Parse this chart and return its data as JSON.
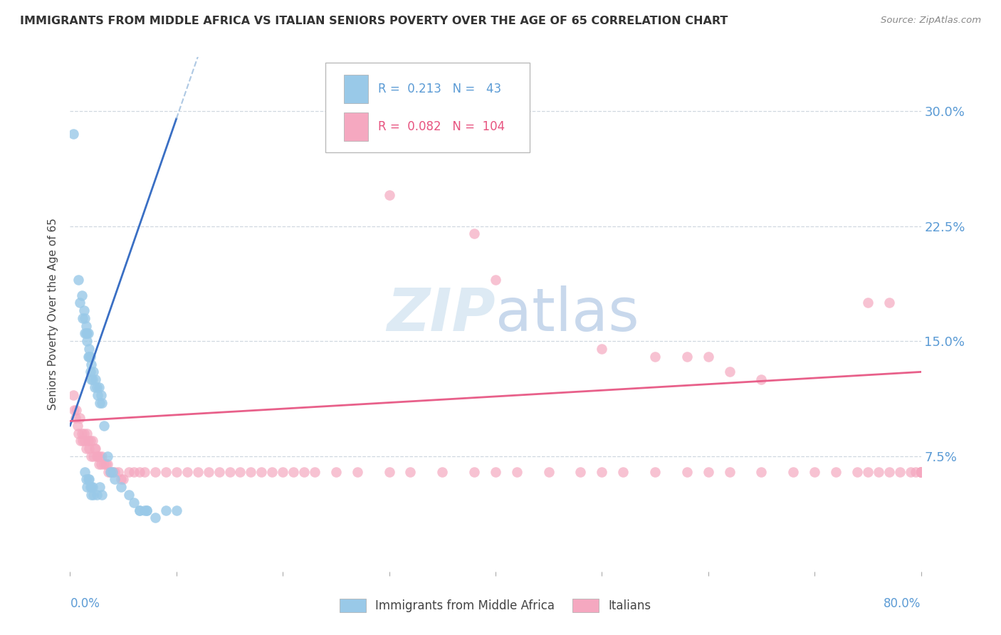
{
  "title": "IMMIGRANTS FROM MIDDLE AFRICA VS ITALIAN SENIORS POVERTY OVER THE AGE OF 65 CORRELATION CHART",
  "source": "Source: ZipAtlas.com",
  "ylabel": "Seniors Poverty Over the Age of 65",
  "ytick_labels": [
    "7.5%",
    "15.0%",
    "22.5%",
    "30.0%"
  ],
  "ytick_values": [
    0.075,
    0.15,
    0.225,
    0.3
  ],
  "xlim": [
    0.0,
    0.8
  ],
  "ylim": [
    0.0,
    0.335
  ],
  "legend_blue_R": "0.213",
  "legend_blue_N": "43",
  "legend_pink_R": "0.082",
  "legend_pink_N": "104",
  "legend_label_blue": "Immigrants from Middle Africa",
  "legend_label_pink": "Italians",
  "blue_color": "#99C9E8",
  "pink_color": "#F5A8C0",
  "blue_line_color": "#3A6FC4",
  "blue_dash_color": "#A0BFDF",
  "pink_line_color": "#E8608A",
  "blue_scatter_x": [
    0.003,
    0.008,
    0.009,
    0.011,
    0.012,
    0.013,
    0.014,
    0.014,
    0.015,
    0.015,
    0.016,
    0.016,
    0.017,
    0.017,
    0.018,
    0.018,
    0.019,
    0.019,
    0.02,
    0.02,
    0.021,
    0.022,
    0.023,
    0.024,
    0.025,
    0.026,
    0.027,
    0.028,
    0.029,
    0.03,
    0.032,
    0.035,
    0.038,
    0.04,
    0.042,
    0.048,
    0.055,
    0.06,
    0.065,
    0.072,
    0.08,
    0.09,
    0.1
  ],
  "blue_scatter_y": [
    0.285,
    0.19,
    0.175,
    0.18,
    0.165,
    0.17,
    0.155,
    0.165,
    0.155,
    0.16,
    0.15,
    0.155,
    0.14,
    0.155,
    0.14,
    0.145,
    0.13,
    0.14,
    0.125,
    0.135,
    0.125,
    0.13,
    0.12,
    0.125,
    0.12,
    0.115,
    0.12,
    0.11,
    0.115,
    0.11,
    0.095,
    0.075,
    0.065,
    0.065,
    0.06,
    0.055,
    0.05,
    0.045,
    0.04,
    0.04,
    0.035,
    0.04,
    0.04
  ],
  "blue_low_x": [
    0.014,
    0.015,
    0.016,
    0.017,
    0.018,
    0.019,
    0.02,
    0.02,
    0.021,
    0.022,
    0.025,
    0.028,
    0.03,
    0.065,
    0.07,
    0.072
  ],
  "blue_low_y": [
    0.065,
    0.06,
    0.055,
    0.06,
    0.06,
    0.055,
    0.055,
    0.05,
    0.055,
    0.05,
    0.05,
    0.055,
    0.05,
    0.04,
    0.04,
    0.04
  ],
  "pink_scatter_x": [
    0.003,
    0.004,
    0.005,
    0.006,
    0.007,
    0.008,
    0.009,
    0.01,
    0.011,
    0.012,
    0.013,
    0.014,
    0.015,
    0.016,
    0.017,
    0.018,
    0.019,
    0.02,
    0.021,
    0.022,
    0.023,
    0.024,
    0.025,
    0.026,
    0.027,
    0.028,
    0.029,
    0.03,
    0.032,
    0.034,
    0.035,
    0.036,
    0.038,
    0.04,
    0.042,
    0.045,
    0.048,
    0.05,
    0.055,
    0.06,
    0.065,
    0.07,
    0.08,
    0.09,
    0.1,
    0.11,
    0.12,
    0.13,
    0.14,
    0.15,
    0.16,
    0.17,
    0.18,
    0.19,
    0.2,
    0.21,
    0.22,
    0.23,
    0.25,
    0.27,
    0.3,
    0.32,
    0.35,
    0.38,
    0.4,
    0.42,
    0.45,
    0.48,
    0.5,
    0.52,
    0.55,
    0.58,
    0.6,
    0.62,
    0.65,
    0.68,
    0.7,
    0.72,
    0.74,
    0.75,
    0.76,
    0.77,
    0.78,
    0.79,
    0.795,
    0.8,
    0.8,
    0.8,
    0.8,
    0.8,
    0.8,
    0.8,
    0.8,
    0.8,
    0.8,
    0.8,
    0.8,
    0.8,
    0.8,
    0.8,
    0.8,
    0.8,
    0.8,
    0.8
  ],
  "pink_scatter_y": [
    0.115,
    0.105,
    0.1,
    0.105,
    0.095,
    0.09,
    0.1,
    0.085,
    0.09,
    0.085,
    0.09,
    0.085,
    0.08,
    0.09,
    0.085,
    0.08,
    0.085,
    0.075,
    0.085,
    0.075,
    0.08,
    0.08,
    0.075,
    0.075,
    0.07,
    0.075,
    0.07,
    0.075,
    0.07,
    0.07,
    0.07,
    0.065,
    0.065,
    0.065,
    0.065,
    0.065,
    0.06,
    0.06,
    0.065,
    0.065,
    0.065,
    0.065,
    0.065,
    0.065,
    0.065,
    0.065,
    0.065,
    0.065,
    0.065,
    0.065,
    0.065,
    0.065,
    0.065,
    0.065,
    0.065,
    0.065,
    0.065,
    0.065,
    0.065,
    0.065,
    0.065,
    0.065,
    0.065,
    0.065,
    0.065,
    0.065,
    0.065,
    0.065,
    0.065,
    0.065,
    0.065,
    0.065,
    0.065,
    0.065,
    0.065,
    0.065,
    0.065,
    0.065,
    0.065,
    0.065,
    0.065,
    0.065,
    0.065,
    0.065,
    0.065,
    0.065,
    0.065,
    0.065,
    0.065,
    0.065,
    0.065,
    0.065,
    0.065,
    0.065,
    0.065,
    0.065,
    0.065,
    0.065,
    0.065,
    0.065,
    0.065,
    0.065,
    0.065,
    0.065
  ],
  "pink_high_x": [
    0.3,
    0.38,
    0.4,
    0.5,
    0.55,
    0.58,
    0.6,
    0.62,
    0.65,
    0.75,
    0.77
  ],
  "pink_high_y": [
    0.245,
    0.22,
    0.19,
    0.145,
    0.14,
    0.14,
    0.14,
    0.13,
    0.125,
    0.175,
    0.175
  ]
}
